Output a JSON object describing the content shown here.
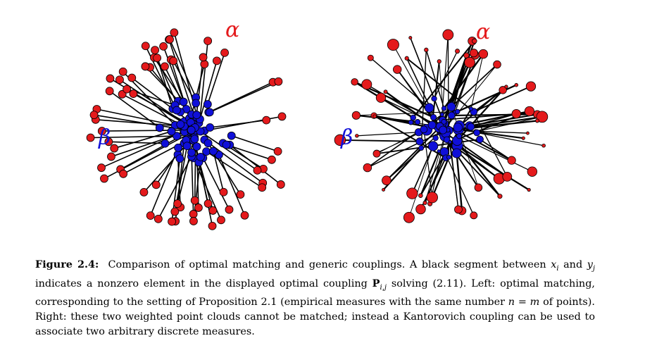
{
  "figure": {
    "left_panel": {
      "alpha_label": "α",
      "beta_label": "β",
      "alpha_color": "#e41a1c",
      "beta_color": "#1010d8"
    },
    "right_panel": {
      "alpha_label": "α",
      "beta_label": "β",
      "alpha_color": "#e41a1c",
      "beta_color": "#1010d8"
    }
  },
  "caption": {
    "label": "Figure 2.4:",
    "t1": "Comparison of optimal matching and generic couplings. A black segment between ",
    "x_i": "x",
    "x_sub": "i",
    "t2": " and ",
    "y_j": "y",
    "y_sub": "j",
    "t3": " indicates a nonzero element in the displayed optimal coupling ",
    "P": "P",
    "P_sub": "i,j",
    "t4": " solving (2.11). Left: optimal matching, corresponding to the setting of Proposition 2.1 (empirical measures with the same number ",
    "n_eq_m": "n = m",
    "t5": " of points). Right: these two weighted point clouds cannot be matched; instead a Kantorovich coupling can be used to associate two arbitrary discrete measures."
  }
}
